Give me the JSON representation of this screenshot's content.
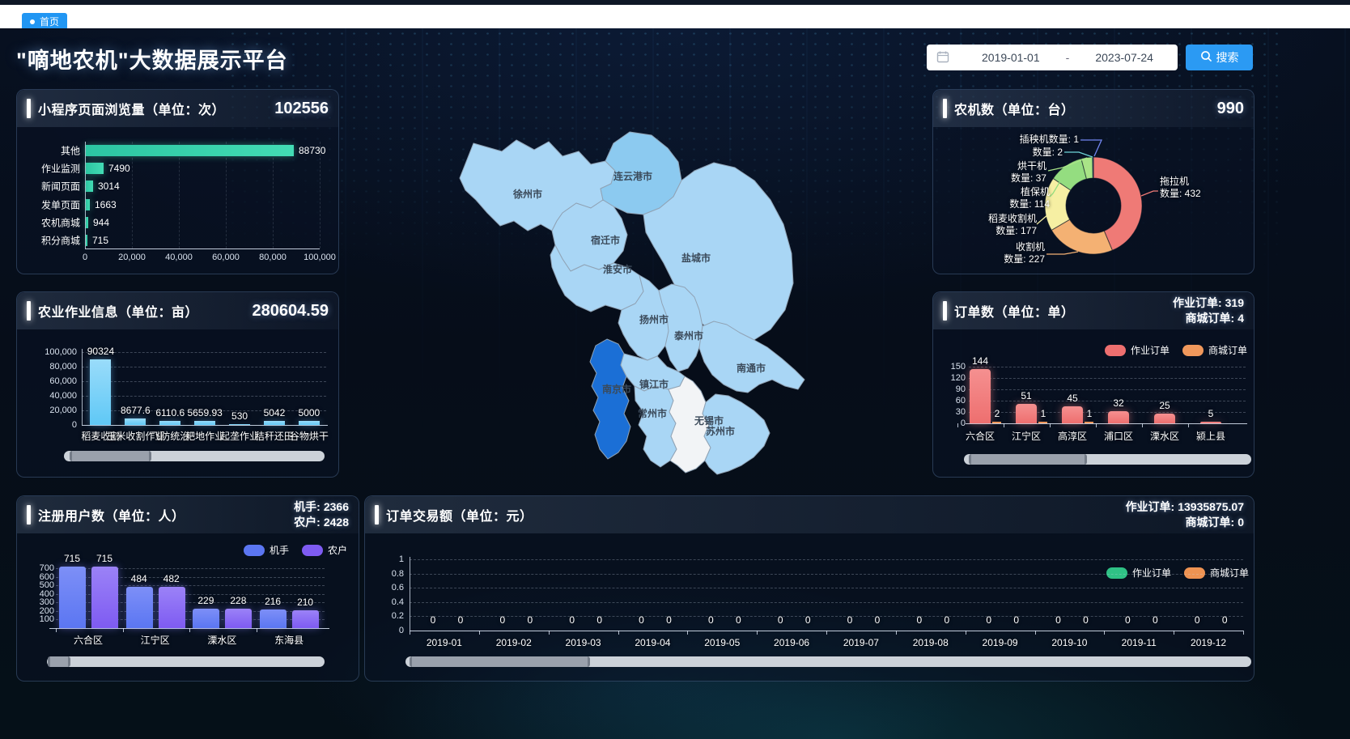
{
  "topbar": {
    "tab": "首页"
  },
  "header": {
    "title": "\"嘀地农机\"大数据展示平台",
    "date_start": "2019-01-01",
    "date_separator": "-",
    "date_end": "2023-07-24",
    "search_label": "搜索"
  },
  "map": {
    "cities": [
      {
        "name": "徐州市",
        "fill": "#a9d6f5"
      },
      {
        "name": "连云港市",
        "fill": "#8ccaf0"
      },
      {
        "name": "宿迁市",
        "fill": "#a9d6f5"
      },
      {
        "name": "淮安市",
        "fill": "#a9d6f5"
      },
      {
        "name": "盐城市",
        "fill": "#a9d6f5"
      },
      {
        "name": "扬州市",
        "fill": "#a9d6f5"
      },
      {
        "name": "泰州市",
        "fill": "#a9d6f5"
      },
      {
        "name": "南通市",
        "fill": "#a9d6f5"
      },
      {
        "name": "南京市",
        "fill": "#1b6fd6"
      },
      {
        "name": "镇江市",
        "fill": "#a9d6f5"
      },
      {
        "name": "常州市",
        "fill": "#a9d6f5"
      },
      {
        "name": "无锡市",
        "fill": "#f2f4f6"
      },
      {
        "name": "苏州市",
        "fill": "#a9d6f5"
      }
    ]
  },
  "chart_data": [
    {
      "id": "pageviews",
      "type": "bar",
      "orientation": "horizontal",
      "title": "小程序页面浏览量（单位：次）",
      "total": "102556",
      "categories": [
        "其他",
        "作业监测",
        "新闻页面",
        "发单页面",
        "农机商城",
        "积分商城"
      ],
      "values": [
        88730,
        7490,
        3014,
        1663,
        944,
        715
      ],
      "xticks": [
        "0",
        "20,000",
        "40,000",
        "60,000",
        "80,000",
        "100,000"
      ],
      "xmax": 100000,
      "bar_color": "#43dcb4",
      "grid": true
    },
    {
      "id": "farmwork",
      "type": "bar",
      "title": "农业作业信息（单位：亩）",
      "total": "280604.59",
      "categories": [
        "稻麦收割",
        "玉米收割作业",
        "飞防统治",
        "耙地作业",
        "起垄作业",
        "秸秆还田",
        "谷物烘干"
      ],
      "values": [
        90324,
        8677.6,
        6110.6,
        5659.93,
        530,
        5042,
        5000
      ],
      "yticks": [
        "0",
        "20,000",
        "40,000",
        "60,000",
        "80,000",
        "100,000"
      ],
      "ymax": 100000,
      "bar_color": "#5fc8f6",
      "grid": true,
      "has_datazoom": true
    },
    {
      "id": "users",
      "type": "bar",
      "title": "注册用户数（单位：人）",
      "stats": [
        {
          "label": "机手:",
          "value": "2366"
        },
        {
          "label": "农户:",
          "value": "2428"
        }
      ],
      "categories": [
        "六合区",
        "江宁区",
        "溧水区",
        "东海县"
      ],
      "series": [
        {
          "name": "机手",
          "color": "#5b76f2",
          "color2": "#7d8ff7",
          "values": [
            715,
            484,
            229,
            216
          ]
        },
        {
          "name": "农户",
          "color": "#7e5bf2",
          "color2": "#9b82f7",
          "values": [
            715,
            482,
            228,
            210
          ]
        }
      ],
      "yticks": [
        "100",
        "200",
        "300",
        "400",
        "500",
        "600",
        "700"
      ],
      "ymax": 700,
      "legend_position": "top-right",
      "grid": true,
      "has_datazoom": true
    },
    {
      "id": "machines",
      "type": "pie",
      "title": "农机数（单位：台）",
      "total": "990",
      "slices": [
        {
          "label": "拖拉机",
          "value": 432,
          "color": "#ef7a76"
        },
        {
          "label": "收割机",
          "value": 227,
          "color": "#f4b173"
        },
        {
          "label": "稻麦收割机",
          "value": 177,
          "color": "#f6efa3"
        },
        {
          "label": "植保机",
          "value": 114,
          "color": "#94dd80"
        },
        {
          "label": "烘干机",
          "value": 37,
          "color": "#a9e487"
        },
        {
          "label": "",
          "value": 2,
          "color": "#6fd5d8"
        },
        {
          "label": "插秧机",
          "value": 1,
          "color": "#7286f0"
        }
      ],
      "callouts": [
        [
          "插秧机数量: 1"
        ],
        [
          "数量: 2"
        ],
        [
          "烘干机",
          "数量: 37"
        ],
        [
          "植保机",
          "数量: 114"
        ],
        [
          "稻麦收割机",
          "数量: 177"
        ],
        [
          "收割机",
          "数量: 227"
        ],
        [
          "拖拉机",
          "数量: 432"
        ]
      ]
    },
    {
      "id": "orders",
      "type": "bar",
      "title": "订单数（单位：单）",
      "stats": [
        {
          "label": "作业订单:",
          "value": "319"
        },
        {
          "label": "商城订单:",
          "value": "4"
        }
      ],
      "categories": [
        "六合区",
        "江宁区",
        "高淳区",
        "浦口区",
        "溧水区",
        "颍上县"
      ],
      "series": [
        {
          "name": "作业订单",
          "color": "#ee6f6f",
          "color2": "#f59090",
          "values": [
            144,
            51,
            45,
            32,
            25,
            5
          ]
        },
        {
          "name": "商城订单",
          "color": "#f0985c",
          "color2": "#f5b27e",
          "values": [
            2,
            1,
            1,
            0,
            0,
            0
          ]
        }
      ],
      "yticks": [
        "0",
        "30",
        "60",
        "90",
        "120",
        "150"
      ],
      "ymax": 150,
      "legend_position": "top-right",
      "grid": true,
      "has_datazoom": true
    },
    {
      "id": "transactions",
      "type": "line",
      "title": "订单交易额（单位：元）",
      "stats": [
        {
          "label": "作业订单:",
          "value": "13935875.07"
        },
        {
          "label": "商城订单:",
          "value": "0"
        }
      ],
      "x": [
        "2019-01",
        "2019-02",
        "2019-03",
        "2019-04",
        "2019-05",
        "2019-06",
        "2019-07",
        "2019-08",
        "2019-09",
        "2019-10",
        "2019-11",
        "2019-12"
      ],
      "series": [
        {
          "name": "作业订单",
          "color": "#2fc185",
          "values": [
            0,
            0,
            0,
            0,
            0,
            0,
            0,
            0,
            0,
            0,
            0,
            0
          ]
        },
        {
          "name": "商城订单",
          "color": "#ef9352",
          "values": [
            0,
            0,
            0,
            0,
            0,
            0,
            0,
            0,
            0,
            0,
            0,
            0
          ]
        }
      ],
      "yticks": [
        "0",
        "0.2",
        "0.4",
        "0.6",
        "0.8",
        "1"
      ],
      "ymax": 1,
      "legend_position": "top-right",
      "grid": true,
      "has_datazoom": true
    }
  ]
}
